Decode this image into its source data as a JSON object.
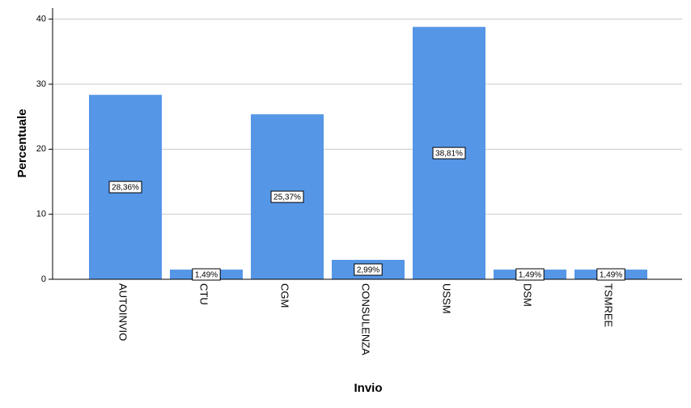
{
  "chart_data": {
    "type": "bar",
    "x_label": "Invio",
    "y_label": "Percentuale",
    "categories": [
      "AUTOINVIO",
      "CTU",
      "CGM",
      "CONSULENZA",
      "USSM",
      "DSM",
      "TSMREE"
    ],
    "values": [
      28.36,
      1.49,
      25.37,
      2.99,
      38.81,
      1.49,
      1.49
    ],
    "value_labels": [
      "28,36%",
      "1,49%",
      "25,37%",
      "2,99%",
      "38,81%",
      "1,49%",
      "1,49%"
    ],
    "color": "#5596e6",
    "ylim": [
      0,
      41.7
    ],
    "yticks": [
      0,
      10,
      20,
      30,
      40
    ],
    "grid": true
  }
}
